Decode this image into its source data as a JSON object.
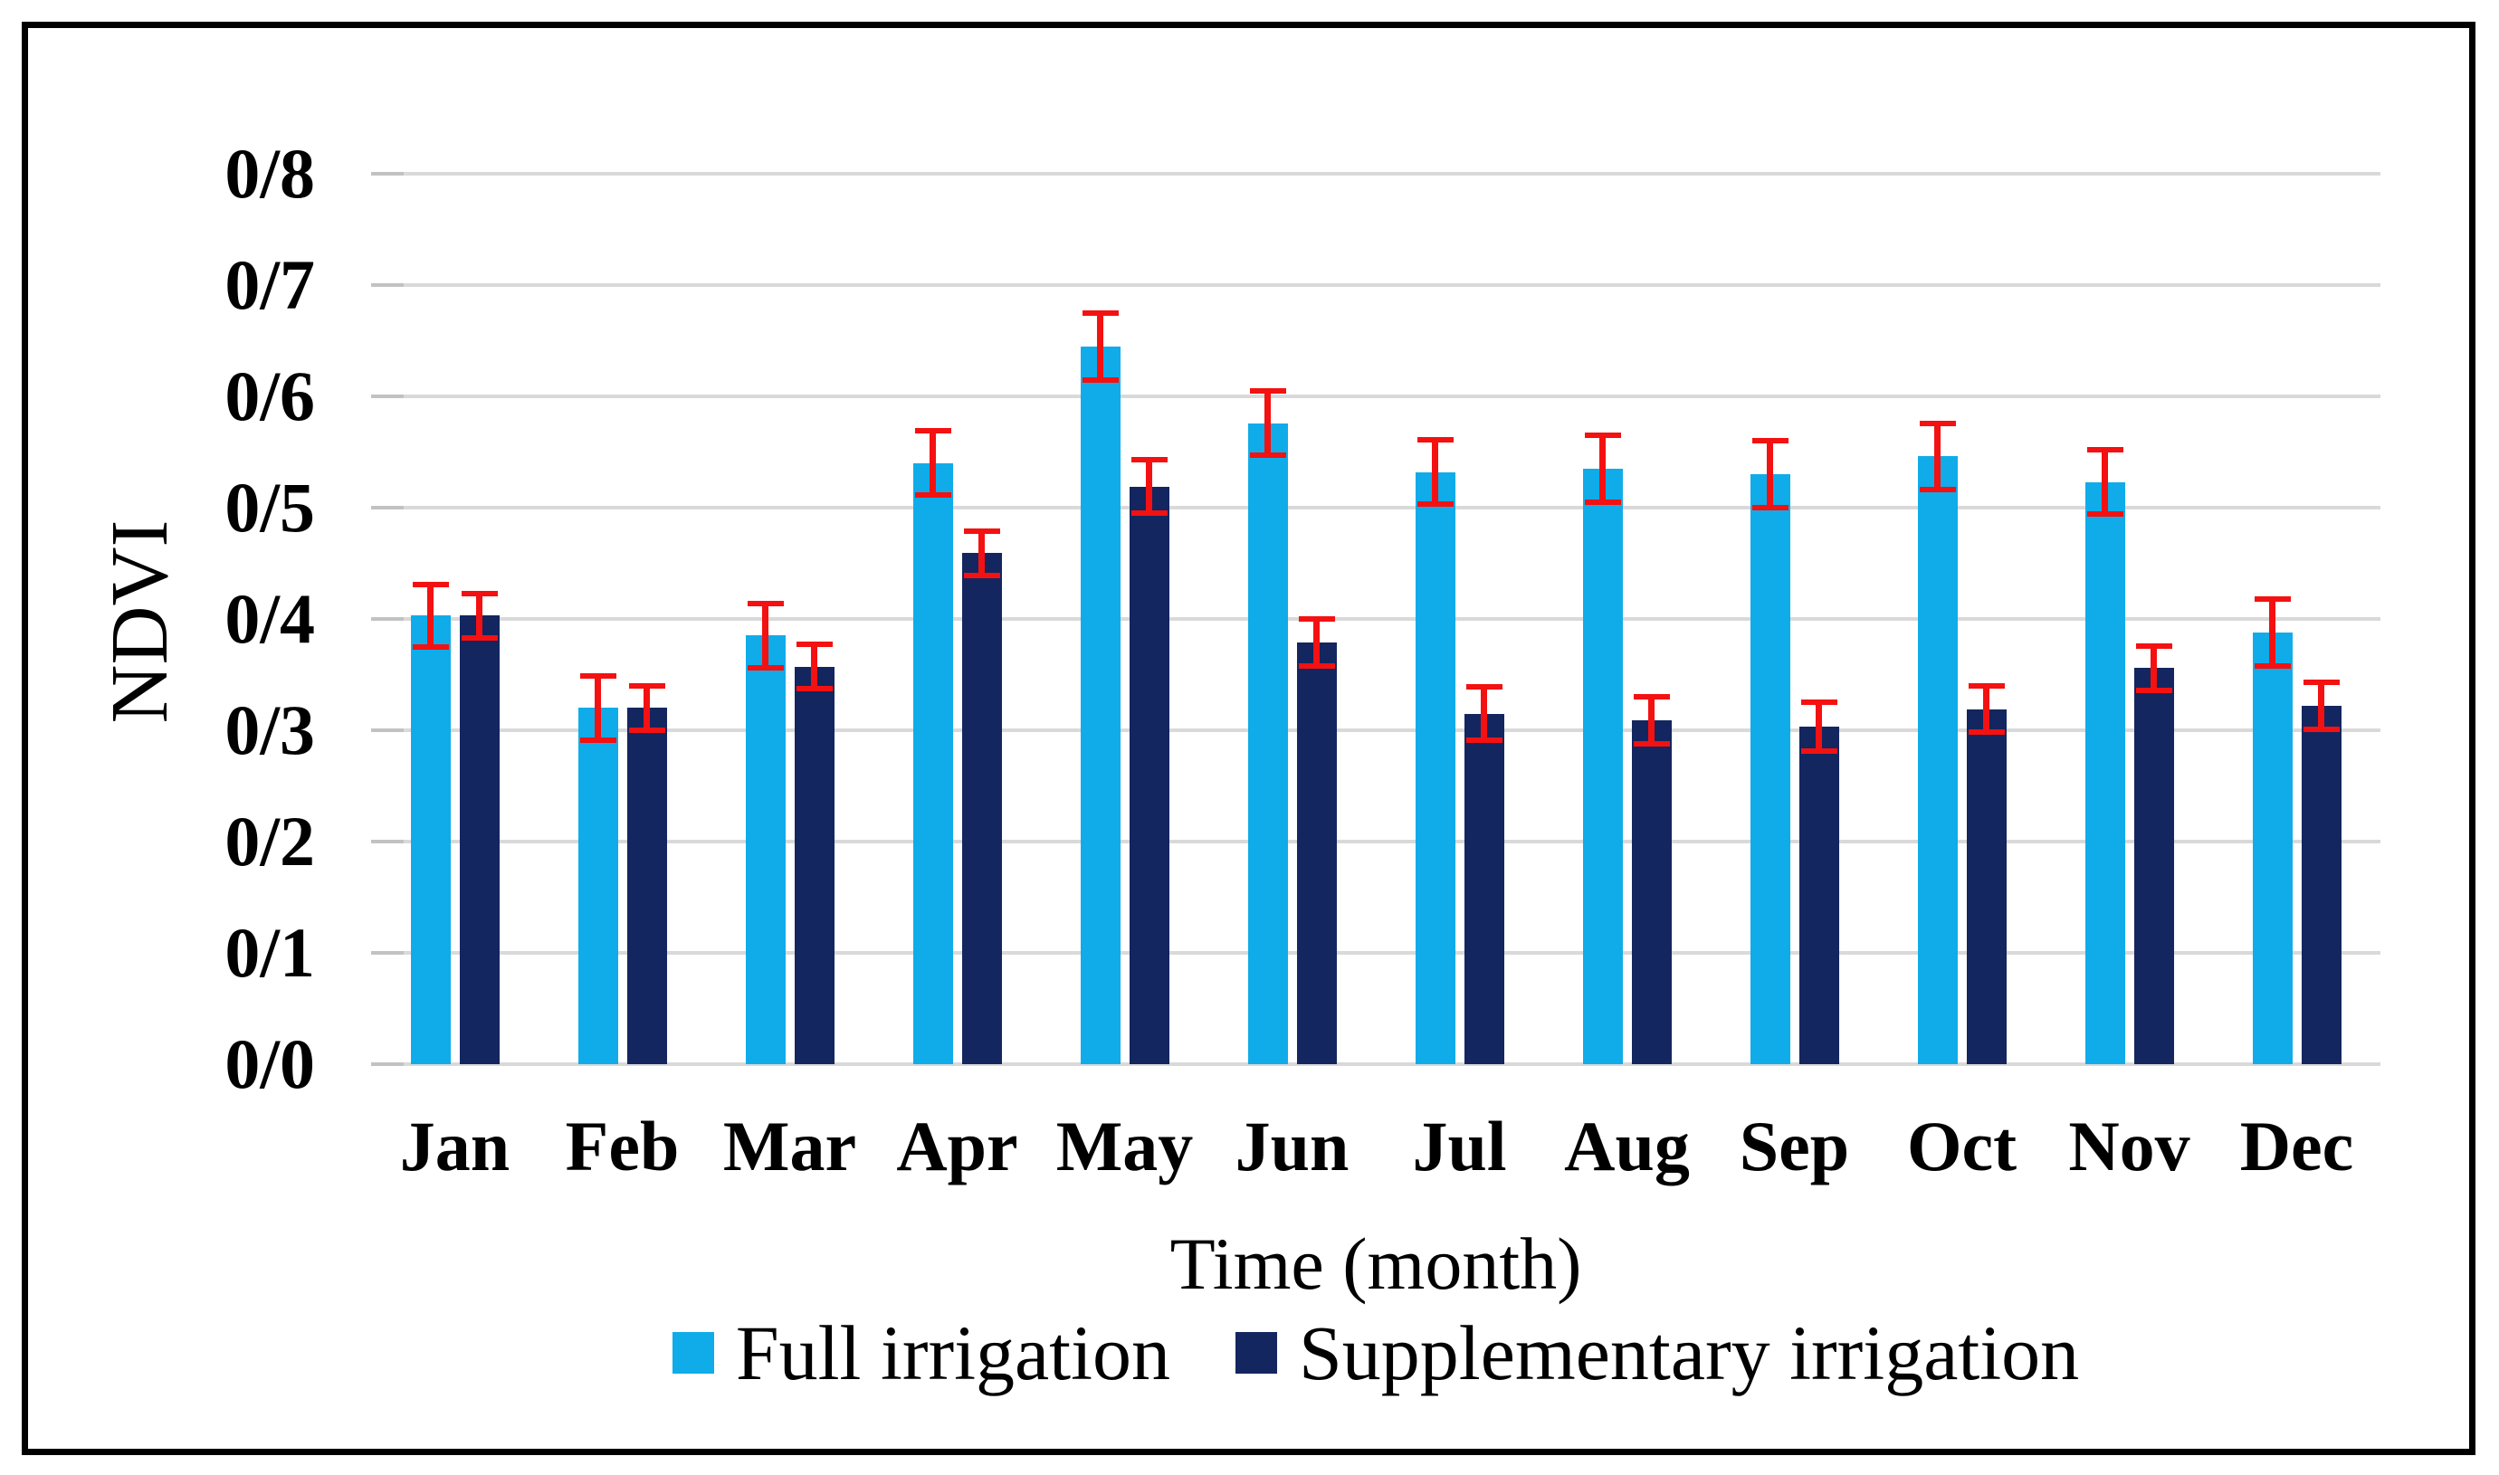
{
  "chart_data": {
    "type": "bar",
    "title": "",
    "xlabel": "Time (month)",
    "ylabel": "NDVI",
    "categories": [
      "Jan",
      "Feb",
      "Mar",
      "Apr",
      "May",
      "Jun",
      "Jul",
      "Aug",
      "Sep",
      "Oct",
      "Nov",
      "Dec"
    ],
    "y_tick_labels": [
      "0/0",
      "0/1",
      "0/2",
      "0/3",
      "0/4",
      "0/5",
      "0/6",
      "0/7",
      "0/8"
    ],
    "y_tick_values": [
      0.0,
      0.1,
      0.2,
      0.3,
      0.4,
      0.5,
      0.6,
      0.7,
      0.8
    ],
    "ylim": [
      0,
      0.8
    ],
    "grid": true,
    "legend_position": "bottom",
    "series": [
      {
        "name": "Full irrigation",
        "color": "#10ACE9",
        "values": [
          0.403,
          0.32,
          0.385,
          0.54,
          0.645,
          0.576,
          0.532,
          0.535,
          0.53,
          0.546,
          0.523,
          0.388
        ],
        "errors": [
          0.028,
          0.029,
          0.029,
          0.029,
          0.03,
          0.029,
          0.029,
          0.03,
          0.03,
          0.03,
          0.029,
          0.03
        ]
      },
      {
        "name": "Supplementary irrigation",
        "color": "#13265F",
        "values": [
          0.403,
          0.32,
          0.357,
          0.459,
          0.519,
          0.379,
          0.315,
          0.309,
          0.303,
          0.319,
          0.356,
          0.322
        ],
        "errors": [
          0.02,
          0.02,
          0.02,
          0.02,
          0.024,
          0.021,
          0.024,
          0.021,
          0.022,
          0.021,
          0.02,
          0.021
        ]
      }
    ],
    "error_bar_color": "#F41111",
    "gridline_color": "#D9D9D9",
    "frame_color": "#000000"
  }
}
